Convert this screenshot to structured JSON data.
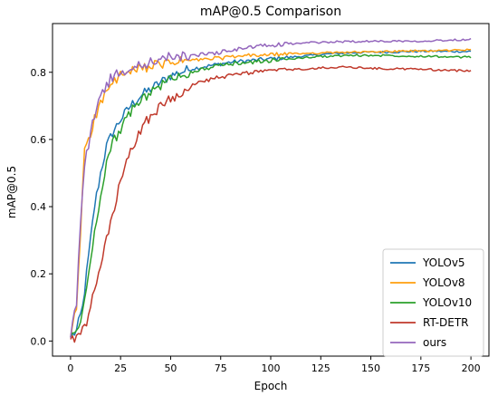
{
  "chart_data": {
    "type": "line",
    "title": "mAP@0.5 Comparison",
    "xlabel": "Epoch",
    "ylabel": "mAP@0.5",
    "xlim": [
      -9,
      209
    ],
    "ylim": [
      -0.045,
      0.945
    ],
    "xticks": [
      0,
      25,
      50,
      75,
      100,
      125,
      150,
      175,
      200
    ],
    "yticks": [
      0.0,
      0.2,
      0.4,
      0.6,
      0.8
    ],
    "ytick_labels": [
      "0.0",
      "0.2",
      "0.4",
      "0.6",
      "0.8"
    ],
    "grid": false,
    "legend_position": "lower-right",
    "series": [
      {
        "name": "YOLOv5",
        "color": "#1f77b4",
        "points": [
          [
            0,
            0.01
          ],
          [
            3,
            0.03
          ],
          [
            6,
            0.1
          ],
          [
            9,
            0.25
          ],
          [
            12,
            0.4
          ],
          [
            15,
            0.5
          ],
          [
            18,
            0.58
          ],
          [
            21,
            0.62
          ],
          [
            25,
            0.66
          ],
          [
            30,
            0.7
          ],
          [
            35,
            0.73
          ],
          [
            40,
            0.75
          ],
          [
            45,
            0.77
          ],
          [
            50,
            0.79
          ],
          [
            60,
            0.81
          ],
          [
            70,
            0.82
          ],
          [
            80,
            0.83
          ],
          [
            90,
            0.835
          ],
          [
            100,
            0.84
          ],
          [
            110,
            0.845
          ],
          [
            120,
            0.85
          ],
          [
            130,
            0.855
          ],
          [
            140,
            0.858
          ],
          [
            150,
            0.86
          ],
          [
            160,
            0.86
          ],
          [
            170,
            0.862
          ],
          [
            180,
            0.863
          ],
          [
            190,
            0.862
          ],
          [
            200,
            0.862
          ]
        ]
      },
      {
        "name": "YOLOv8",
        "color": "#ff9f0e",
        "points": [
          [
            0,
            0.01
          ],
          [
            3,
            0.1
          ],
          [
            5,
            0.32
          ],
          [
            7,
            0.58
          ],
          [
            10,
            0.62
          ],
          [
            13,
            0.68
          ],
          [
            16,
            0.72
          ],
          [
            20,
            0.76
          ],
          [
            25,
            0.79
          ],
          [
            30,
            0.8
          ],
          [
            35,
            0.81
          ],
          [
            40,
            0.82
          ],
          [
            45,
            0.82
          ],
          [
            50,
            0.83
          ],
          [
            60,
            0.835
          ],
          [
            70,
            0.84
          ],
          [
            80,
            0.845
          ],
          [
            90,
            0.85
          ],
          [
            100,
            0.852
          ],
          [
            110,
            0.855
          ],
          [
            120,
            0.857
          ],
          [
            130,
            0.858
          ],
          [
            140,
            0.86
          ],
          [
            150,
            0.86
          ],
          [
            160,
            0.862
          ],
          [
            170,
            0.863
          ],
          [
            180,
            0.864
          ],
          [
            190,
            0.865
          ],
          [
            200,
            0.868
          ]
        ]
      },
      {
        "name": "YOLOv10",
        "color": "#2ca02c",
        "points": [
          [
            0,
            0.01
          ],
          [
            3,
            0.03
          ],
          [
            6,
            0.08
          ],
          [
            9,
            0.2
          ],
          [
            12,
            0.32
          ],
          [
            15,
            0.44
          ],
          [
            18,
            0.53
          ],
          [
            21,
            0.59
          ],
          [
            25,
            0.63
          ],
          [
            30,
            0.68
          ],
          [
            35,
            0.72
          ],
          [
            40,
            0.74
          ],
          [
            45,
            0.76
          ],
          [
            50,
            0.78
          ],
          [
            60,
            0.8
          ],
          [
            70,
            0.815
          ],
          [
            80,
            0.825
          ],
          [
            90,
            0.83
          ],
          [
            100,
            0.835
          ],
          [
            110,
            0.84
          ],
          [
            120,
            0.845
          ],
          [
            130,
            0.848
          ],
          [
            140,
            0.85
          ],
          [
            150,
            0.85
          ],
          [
            160,
            0.85
          ],
          [
            170,
            0.848
          ],
          [
            180,
            0.848
          ],
          [
            190,
            0.845
          ],
          [
            200,
            0.845
          ]
        ]
      },
      {
        "name": "RT-DETR",
        "color": "#c0392b",
        "points": [
          [
            0,
            0.005
          ],
          [
            4,
            0.01
          ],
          [
            8,
            0.05
          ],
          [
            12,
            0.15
          ],
          [
            16,
            0.25
          ],
          [
            20,
            0.35
          ],
          [
            24,
            0.45
          ],
          [
            28,
            0.53
          ],
          [
            32,
            0.59
          ],
          [
            36,
            0.64
          ],
          [
            40,
            0.67
          ],
          [
            45,
            0.7
          ],
          [
            50,
            0.72
          ],
          [
            55,
            0.74
          ],
          [
            60,
            0.76
          ],
          [
            70,
            0.78
          ],
          [
            80,
            0.79
          ],
          [
            90,
            0.8
          ],
          [
            100,
            0.805
          ],
          [
            110,
            0.808
          ],
          [
            120,
            0.81
          ],
          [
            130,
            0.815
          ],
          [
            140,
            0.815
          ],
          [
            150,
            0.812
          ],
          [
            160,
            0.81
          ],
          [
            170,
            0.81
          ],
          [
            180,
            0.808
          ],
          [
            190,
            0.805
          ],
          [
            200,
            0.805
          ]
        ]
      },
      {
        "name": "ours",
        "color": "#9467bd",
        "points": [
          [
            0,
            0.01
          ],
          [
            3,
            0.12
          ],
          [
            5,
            0.35
          ],
          [
            7,
            0.52
          ],
          [
            10,
            0.62
          ],
          [
            13,
            0.7
          ],
          [
            16,
            0.74
          ],
          [
            20,
            0.78
          ],
          [
            25,
            0.8
          ],
          [
            30,
            0.81
          ],
          [
            35,
            0.82
          ],
          [
            40,
            0.83
          ],
          [
            45,
            0.84
          ],
          [
            50,
            0.845
          ],
          [
            60,
            0.85
          ],
          [
            70,
            0.855
          ],
          [
            80,
            0.865
          ],
          [
            90,
            0.875
          ],
          [
            100,
            0.88
          ],
          [
            110,
            0.885
          ],
          [
            120,
            0.888
          ],
          [
            130,
            0.89
          ],
          [
            140,
            0.892
          ],
          [
            150,
            0.892
          ],
          [
            160,
            0.893
          ],
          [
            170,
            0.893
          ],
          [
            180,
            0.894
          ],
          [
            190,
            0.896
          ],
          [
            200,
            0.898
          ]
        ]
      }
    ]
  }
}
